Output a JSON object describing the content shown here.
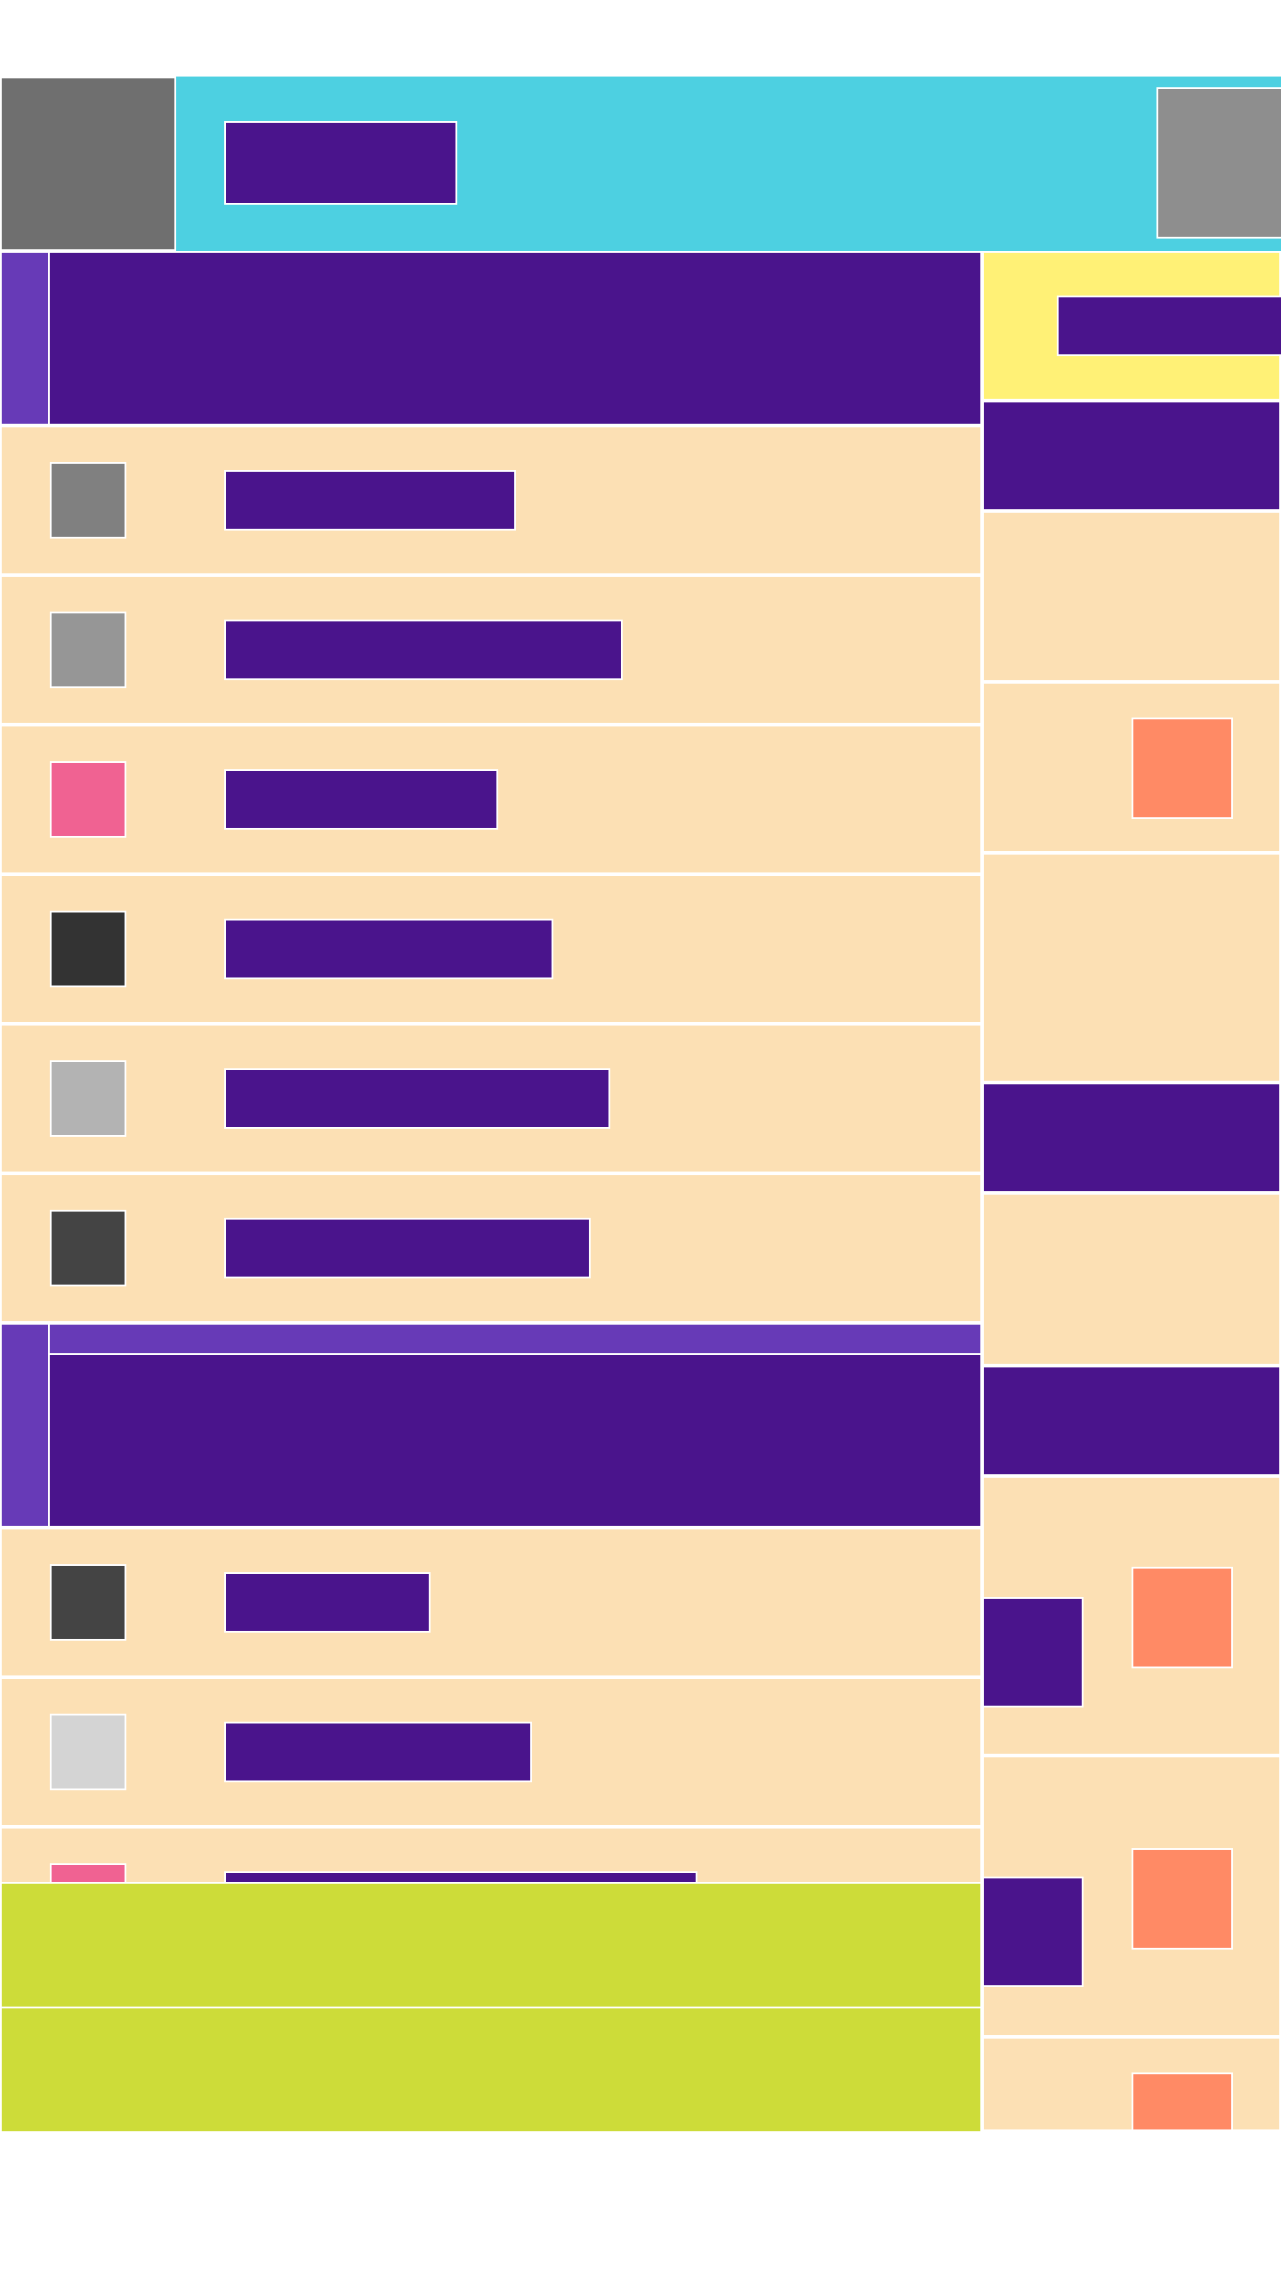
{
  "colors": {
    "primary": "#4a148c",
    "accent": "#673ab7",
    "header": "#4dd0e1",
    "row_background": "#fce0b4",
    "highlight": "#fff176",
    "lime": "#cddc39",
    "orange": "#ff8a65"
  },
  "header": {
    "title": "",
    "avatar_icon": "avatar-icon",
    "menu_icon": "menu-icon"
  },
  "sections": [
    {
      "title": "",
      "items": [
        {
          "label": "",
          "icon_color": "#808080"
        },
        {
          "label": "",
          "icon_color": "#969696"
        },
        {
          "label": "",
          "icon_color": "#f06292"
        },
        {
          "label": "",
          "icon_color": "#333333"
        },
        {
          "label": "",
          "icon_color": "#b3b3b3"
        },
        {
          "label": "",
          "icon_color": "#444444"
        }
      ]
    },
    {
      "title": "",
      "items": [
        {
          "label": "",
          "icon_color": "#444444"
        },
        {
          "label": "",
          "icon_color": "#d4d4d4"
        },
        {
          "label": "",
          "icon_color": "#f06292"
        }
      ]
    }
  ],
  "sidebar": {
    "highlight_label": "",
    "groups": [
      {
        "title": ""
      },
      {
        "title": ""
      },
      {
        "title": ""
      }
    ],
    "badges": [
      {
        "label": ""
      },
      {
        "label": ""
      }
    ]
  },
  "footer": {
    "primary_action": "",
    "secondary_action": ""
  }
}
